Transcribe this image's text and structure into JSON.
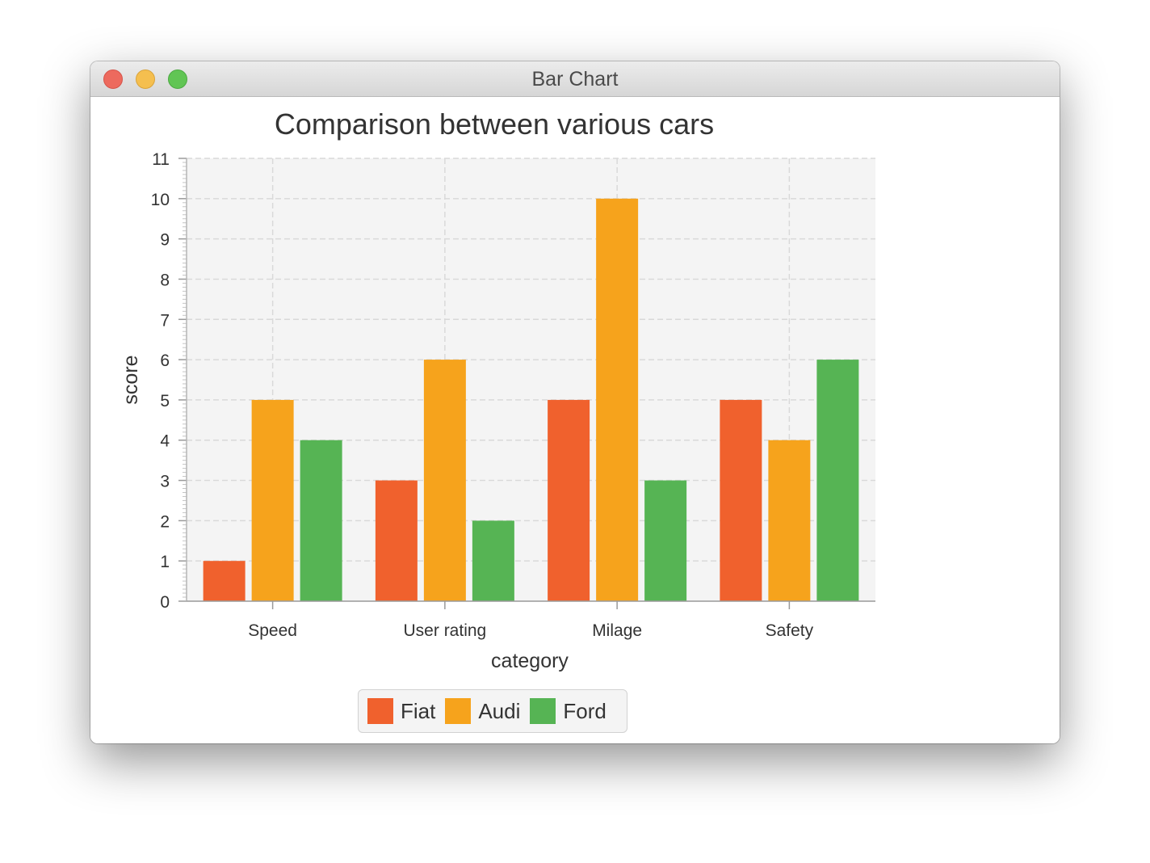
{
  "window": {
    "title": "Bar Chart"
  },
  "chart_data": {
    "type": "bar",
    "title": "Comparison between various cars",
    "xlabel": "category",
    "ylabel": "score",
    "categories": [
      "Speed",
      "User rating",
      "Milage",
      "Safety"
    ],
    "series": [
      {
        "name": "Fiat",
        "color": "#f0612d",
        "values": [
          1,
          3,
          5,
          5
        ]
      },
      {
        "name": "Audi",
        "color": "#f6a31c",
        "values": [
          5,
          6,
          10,
          4
        ]
      },
      {
        "name": "Ford",
        "color": "#56b454",
        "values": [
          4,
          2,
          3,
          6
        ]
      }
    ],
    "ylim": [
      0,
      11
    ],
    "yticks": [
      "0",
      "1",
      "2",
      "3",
      "4",
      "5",
      "6",
      "7",
      "8",
      "9",
      "10",
      "11"
    ],
    "grid": true,
    "legend_position": "bottom"
  }
}
